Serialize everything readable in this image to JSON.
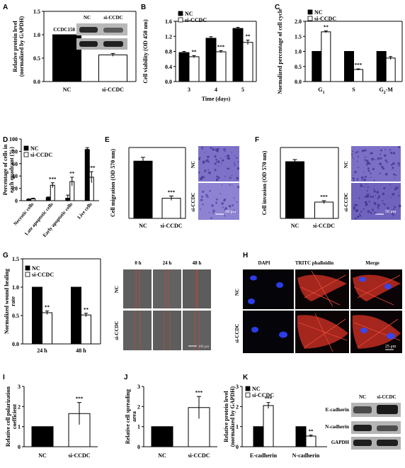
{
  "panel_letters": [
    "A",
    "B",
    "C",
    "D",
    "E",
    "F",
    "G",
    "H",
    "I",
    "J",
    "K"
  ],
  "colors": {
    "nc": "#000000",
    "si": "#ffffff",
    "violet": "#7c6fc6",
    "red": "#d63a2a",
    "blue": "#2a38e0"
  },
  "chart_data": [
    {
      "id": "A",
      "type": "bar",
      "categories": [
        "NC",
        "si-CCDC"
      ],
      "values": [
        1.0,
        0.57
      ],
      "errors": [
        0,
        0.03
      ],
      "sig": [
        "",
        "**"
      ],
      "ylabel": "Relative protein level (normalized by GAPDH)",
      "ylim": [
        0,
        1.5
      ],
      "yticks": [
        0.0,
        0.5,
        1.0,
        1.5
      ]
    },
    {
      "id": "B",
      "type": "bar",
      "categories": [
        "3",
        "4",
        "5"
      ],
      "xlabel": "Time (days)",
      "ylabel": "Cell viability (OD 450 nm)",
      "ylim": [
        0,
        1.6
      ],
      "yticks": [
        0.0,
        0.4,
        0.8,
        1.2,
        1.6
      ],
      "legend": [
        "NC",
        "si-CCDC"
      ],
      "series": [
        {
          "name": "NC",
          "values": [
            0.77,
            1.15,
            1.41
          ],
          "errors": [
            0.03,
            0.04,
            0.03
          ]
        },
        {
          "name": "si-CCDC",
          "values": [
            0.66,
            0.79,
            1.04
          ],
          "errors": [
            0.03,
            0.03,
            0.06
          ]
        }
      ],
      "sig": [
        "**",
        "***",
        "**"
      ]
    },
    {
      "id": "C",
      "type": "bar",
      "categories": [
        "G1",
        "S",
        "G2-M"
      ],
      "ylabel": "Normalized percentage of cell cycle",
      "ylim": [
        0,
        2.0
      ],
      "yticks": [
        0.0,
        0.5,
        1.0,
        1.5,
        2.0
      ],
      "legend": [
        "NC",
        "si-CCDC"
      ],
      "series": [
        {
          "name": "NC",
          "values": [
            1.0,
            1.0,
            1.0
          ],
          "errors": [
            0,
            0,
            0
          ]
        },
        {
          "name": "si-CCDC",
          "values": [
            1.65,
            0.4,
            0.78
          ],
          "errors": [
            0.03,
            0.02,
            0.05
          ]
        }
      ],
      "sig": [
        "**",
        "***",
        ""
      ]
    },
    {
      "id": "D",
      "type": "bar",
      "categories": [
        "Necrotic cells",
        "Late apoptotic cells",
        "Early apoptotic cells",
        "Live cells"
      ],
      "ylabel": "Percentage of cells in each quadrant (%)",
      "ylim": [
        0,
        100
      ],
      "yticks": [
        0,
        20,
        40,
        60,
        80,
        100
      ],
      "legend": [
        "NC",
        "si-CCDC"
      ],
      "series": [
        {
          "name": "NC",
          "values": [
            2,
            5,
            4,
            83
          ],
          "errors": [
            1,
            1,
            5,
            3
          ]
        },
        {
          "name": "si-CCDC",
          "values": [
            3,
            25,
            31,
            38
          ],
          "errors": [
            1,
            4,
            7,
            9
          ]
        }
      ],
      "sig": [
        "",
        "***",
        "**",
        "***"
      ]
    },
    {
      "id": "E",
      "type": "bar",
      "categories": [
        "NC",
        "si-CCDC"
      ],
      "values": [
        1.05,
        0.37
      ],
      "errors": [
        0.07,
        0.04
      ],
      "sig": [
        "",
        "***"
      ],
      "ylabel": "Cell migration (OD 570 nm)",
      "ylim": [
        0,
        1.3
      ]
    },
    {
      "id": "F",
      "type": "bar",
      "categories": [
        "NC",
        "si-CCDC"
      ],
      "values": [
        0.8,
        0.23
      ],
      "errors": [
        0.03,
        0.02
      ],
      "sig": [
        "",
        "***"
      ],
      "ylabel": "Cell invasion (OD 570 nm)",
      "ylim": [
        0,
        1.0
      ]
    },
    {
      "id": "G",
      "type": "bar",
      "categories": [
        "24 h",
        "48 h"
      ],
      "ylabel": "Normalized wound healing rate",
      "ylim": [
        0,
        1.5
      ],
      "yticks": [
        0.0,
        0.5,
        1.0,
        1.5
      ],
      "legend": [
        "NC",
        "si-CCDC"
      ],
      "series": [
        {
          "name": "NC",
          "values": [
            1.0,
            1.0
          ],
          "errors": [
            0,
            0
          ]
        },
        {
          "name": "si-CCDC",
          "values": [
            0.55,
            0.51
          ],
          "errors": [
            0.03,
            0.03
          ]
        }
      ],
      "sig": [
        "**",
        "**"
      ]
    },
    {
      "id": "I",
      "type": "bar",
      "categories": [
        "NC",
        "si-CCDC"
      ],
      "values": [
        1.0,
        1.65
      ],
      "errors": [
        0,
        0.55
      ],
      "sig": [
        "",
        "***"
      ],
      "ylabel": "Relative cell polarization coefficient",
      "ylim": [
        0,
        3
      ],
      "yticks": [
        0,
        1,
        2,
        3
      ]
    },
    {
      "id": "J",
      "type": "bar",
      "categories": [
        "NC",
        "si-CCDC"
      ],
      "values": [
        1.0,
        1.95
      ],
      "errors": [
        0,
        0.55
      ],
      "sig": [
        "",
        "***"
      ],
      "ylabel": "Relative cell spreading area",
      "ylim": [
        0,
        3
      ],
      "yticks": [
        0,
        1,
        2,
        3
      ]
    },
    {
      "id": "K",
      "type": "bar",
      "categories": [
        "E-cadherin",
        "N-cadherin"
      ],
      "ylabel": "Relative protein level (normalized by GAPDH)",
      "ylim": [
        0,
        3
      ],
      "yticks": [
        0,
        1,
        2,
        3
      ],
      "legend": [
        "NC",
        "si-CCDC"
      ],
      "series": [
        {
          "name": "NC",
          "values": [
            1.0,
            1.0
          ],
          "errors": [
            0,
            0
          ]
        },
        {
          "name": "si-CCDC",
          "values": [
            2.05,
            0.53
          ],
          "errors": [
            0.15,
            0.05
          ]
        }
      ],
      "sig": [
        "***",
        "**"
      ]
    }
  ],
  "blots": {
    "A": {
      "cols": [
        "NC",
        "si-CCDC"
      ],
      "rows": [
        "CCDC150",
        "GAPDH"
      ]
    },
    "K": {
      "cols": [
        "NC",
        "si-CCDC"
      ],
      "rows": [
        "E-cadherin",
        "N-cadherin",
        "GAPDH"
      ]
    }
  },
  "micro": {
    "E": {
      "rows": [
        "NC",
        "si-CCDC"
      ],
      "scale": "50 μm"
    },
    "F": {
      "rows": [
        "NC",
        "si-CCDC"
      ],
      "scale": "50 μm"
    },
    "G": {
      "cols": [
        "0 h",
        "24 h",
        "48 h"
      ],
      "rows": [
        "NC",
        "si-CCDC"
      ],
      "scale": "100 μm"
    },
    "H": {
      "cols": [
        "DAPI",
        "TRITC phalloidin",
        "Merge"
      ],
      "rows": [
        "NC",
        "si-CCDC"
      ],
      "scale": "25 μm"
    }
  }
}
